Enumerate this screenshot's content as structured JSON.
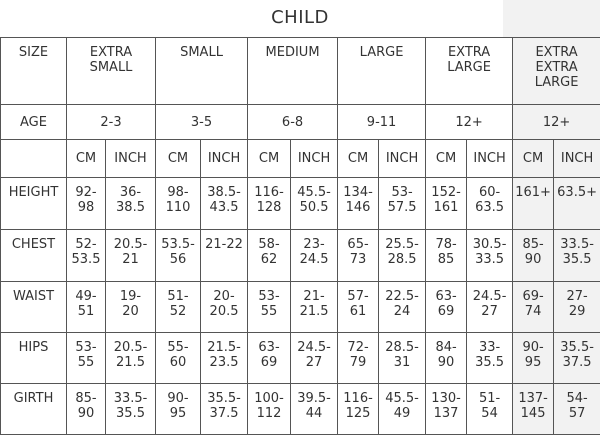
{
  "title": "CHILD",
  "header": [
    "SIZE",
    "EXTRA\nSMALL",
    "SMALL",
    "MEDIUM",
    "LARGE",
    "EXTRA\nLARGE",
    "EXTRA\nEXTRA\nLARGE"
  ],
  "age": {
    "label": "AGE",
    "values": [
      "2-3",
      "3-5",
      "6-8",
      "9-11",
      "12+",
      "12+"
    ]
  },
  "units": [
    "CM",
    "INCH",
    "CM",
    "INCH",
    "CM",
    "INCH",
    "CM",
    "INCH",
    "CM",
    "INCH",
    "CM",
    "INCH"
  ],
  "rows": [
    {
      "label": "HEIGHT",
      "cells": [
        "92-\n98",
        "36-\n38.5",
        "98-\n110",
        "38.5-\n43.5",
        "116-\n128",
        "45.5-\n50.5",
        "134-\n146",
        "53-\n57.5",
        "152-\n161",
        "60-\n63.5",
        "161+",
        "63.5+"
      ]
    },
    {
      "label": "CHEST",
      "cells": [
        "52-\n53.5",
        "20.5-\n21",
        "53.5-\n56",
        "21-22",
        "58-\n62",
        "23-\n24.5",
        "65-\n73",
        "25.5-\n28.5",
        "78-\n85",
        "30.5-\n33.5",
        "85-\n90",
        "33.5-\n35.5"
      ]
    },
    {
      "label": "WAIST",
      "cells": [
        "49-\n51",
        "19-\n20",
        "51-\n52",
        "20-\n20.5",
        "53-\n55",
        "21-\n21.5",
        "57-\n61",
        "22.5-\n24",
        "63-\n69",
        "24.5-\n27",
        "69-\n74",
        "27-\n29"
      ]
    },
    {
      "label": "HIPS",
      "cells": [
        "53-\n55",
        "20.5-\n21.5",
        "55-\n60",
        "21.5-\n23.5",
        "63-\n69",
        "24.5-\n27",
        "72-\n79",
        "28.5-\n31",
        "84-\n90",
        "33-\n35.5",
        "90-\n95",
        "35.5-\n37.5"
      ]
    },
    {
      "label": "GIRTH",
      "cells": [
        "85-\n90",
        "33.5-\n35.5",
        "90-\n95",
        "35.5-\n37.5",
        "100-\n112",
        "39.5-\n44",
        "116-\n125",
        "45.5-\n49",
        "130-\n137",
        "51-\n54",
        "137-\n145",
        "54-\n57"
      ]
    }
  ]
}
